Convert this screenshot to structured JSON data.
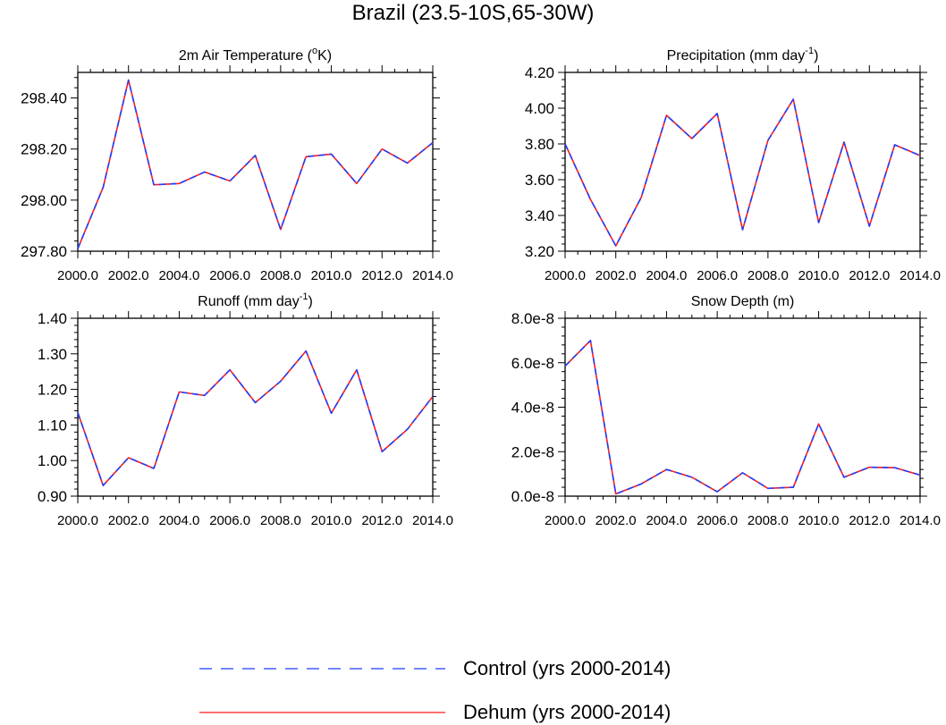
{
  "page_title": "Brazil (23.5-10S,65-30W)",
  "colors": {
    "control": "#1f3fff",
    "dehum": "#ff1a1a",
    "axis": "#000000"
  },
  "legend": {
    "control_label": "Control (yrs 2000-2014)",
    "dehum_label": "Dehum (yrs 2000-2014)"
  },
  "chart_data": [
    {
      "type": "line",
      "title": "2m Air Temperature (",
      "title_sup": "o",
      "title_after": "K)",
      "xlabel": "",
      "ylabel": "",
      "xlim": [
        2000,
        2014
      ],
      "ylim": [
        297.8,
        298.5
      ],
      "x_ticks": [
        2000,
        2002,
        2004,
        2006,
        2008,
        2010,
        2012,
        2014
      ],
      "x_tick_labels": [
        "2000.0",
        "2002.0",
        "2004.0",
        "2006.0",
        "2008.0",
        "2010.0",
        "2012.0",
        "2014.0"
      ],
      "y_ticks": [
        297.8,
        298.0,
        298.2,
        298.4
      ],
      "y_tick_labels": [
        "297.80",
        "298.00",
        "298.20",
        "298.40"
      ],
      "x": [
        2000,
        2001,
        2002,
        2003,
        2004,
        2005,
        2006,
        2007,
        2008,
        2009,
        2010,
        2011,
        2012,
        2013,
        2014
      ],
      "series": [
        {
          "name": "Control (yrs 2000-2014)",
          "style": "dashed",
          "values": [
            297.81,
            298.05,
            298.47,
            298.06,
            298.065,
            298.11,
            298.075,
            298.175,
            297.885,
            298.17,
            298.18,
            298.065,
            298.2,
            298.145,
            298.225
          ]
        },
        {
          "name": "Dehum (yrs 2000-2014)",
          "style": "solid",
          "values": [
            297.81,
            298.05,
            298.47,
            298.06,
            298.065,
            298.11,
            298.075,
            298.175,
            297.885,
            298.17,
            298.18,
            298.065,
            298.2,
            298.145,
            298.225
          ]
        }
      ]
    },
    {
      "type": "line",
      "title": "Precipitation (mm day",
      "title_sup": "-1",
      "title_after": ")",
      "xlabel": "",
      "ylabel": "",
      "xlim": [
        2000,
        2014
      ],
      "ylim": [
        3.2,
        4.2
      ],
      "x_ticks": [
        2000,
        2002,
        2004,
        2006,
        2008,
        2010,
        2012,
        2014
      ],
      "x_tick_labels": [
        "2000.0",
        "2002.0",
        "2004.0",
        "2006.0",
        "2008.0",
        "2010.0",
        "2012.0",
        "2014.0"
      ],
      "y_ticks": [
        3.2,
        3.4,
        3.6,
        3.8,
        4.0,
        4.2
      ],
      "y_tick_labels": [
        "3.20",
        "3.40",
        "3.60",
        "3.80",
        "4.00",
        "4.20"
      ],
      "x": [
        2000,
        2001,
        2002,
        2003,
        2004,
        2005,
        2006,
        2007,
        2008,
        2009,
        2010,
        2011,
        2012,
        2013,
        2014
      ],
      "series": [
        {
          "name": "Control (yrs 2000-2014)",
          "style": "dashed",
          "values": [
            3.8,
            3.49,
            3.23,
            3.5,
            3.96,
            3.83,
            3.97,
            3.32,
            3.82,
            4.05,
            3.36,
            3.81,
            3.34,
            3.795,
            3.735
          ]
        },
        {
          "name": "Dehum (yrs 2000-2014)",
          "style": "solid",
          "values": [
            3.8,
            3.49,
            3.23,
            3.5,
            3.96,
            3.83,
            3.97,
            3.32,
            3.82,
            4.05,
            3.36,
            3.81,
            3.34,
            3.795,
            3.735
          ]
        }
      ]
    },
    {
      "type": "line",
      "title": "Runoff (mm day",
      "title_sup": "-1",
      "title_after": ")",
      "xlabel": "",
      "ylabel": "",
      "xlim": [
        2000,
        2014
      ],
      "ylim": [
        0.9,
        1.4
      ],
      "x_ticks": [
        2000,
        2002,
        2004,
        2006,
        2008,
        2010,
        2012,
        2014
      ],
      "x_tick_labels": [
        "2000.0",
        "2002.0",
        "2004.0",
        "2006.0",
        "2008.0",
        "2010.0",
        "2012.0",
        "2014.0"
      ],
      "y_ticks": [
        0.9,
        1.0,
        1.1,
        1.2,
        1.3,
        1.4
      ],
      "y_tick_labels": [
        "0.90",
        "1.00",
        "1.10",
        "1.20",
        "1.30",
        "1.40"
      ],
      "x": [
        2000,
        2001,
        2002,
        2003,
        2004,
        2005,
        2006,
        2007,
        2008,
        2009,
        2010,
        2011,
        2012,
        2013,
        2014
      ],
      "series": [
        {
          "name": "Control (yrs 2000-2014)",
          "style": "dashed",
          "values": [
            1.135,
            0.93,
            1.008,
            0.978,
            1.193,
            1.183,
            1.255,
            1.163,
            1.223,
            1.308,
            1.133,
            1.255,
            1.025,
            1.088,
            1.18
          ]
        },
        {
          "name": "Dehum (yrs 2000-2014)",
          "style": "solid",
          "values": [
            1.135,
            0.93,
            1.008,
            0.978,
            1.193,
            1.183,
            1.255,
            1.163,
            1.223,
            1.308,
            1.133,
            1.255,
            1.025,
            1.088,
            1.18
          ]
        }
      ]
    },
    {
      "type": "line",
      "title": "Snow Depth (m)",
      "title_sup": "",
      "title_after": "",
      "xlabel": "",
      "ylabel": "",
      "xlim": [
        2000,
        2014
      ],
      "ylim": [
        0,
        8e-08
      ],
      "x_ticks": [
        2000,
        2002,
        2004,
        2006,
        2008,
        2010,
        2012,
        2014
      ],
      "x_tick_labels": [
        "2000.0",
        "2002.0",
        "2004.0",
        "2006.0",
        "2008.0",
        "2010.0",
        "2012.0",
        "2014.0"
      ],
      "y_ticks": [
        0,
        2e-08,
        4e-08,
        6e-08,
        8e-08
      ],
      "y_tick_labels": [
        "0.0e-8",
        "2.0e-8",
        "4.0e-8",
        "6.0e-8",
        "8.0e-8"
      ],
      "x": [
        2000,
        2001,
        2002,
        2003,
        2004,
        2005,
        2006,
        2007,
        2008,
        2009,
        2010,
        2011,
        2012,
        2013,
        2014
      ],
      "series": [
        {
          "name": "Control (yrs 2000-2014)",
          "style": "dashed",
          "values": [
            5.85e-08,
            7e-08,
            1e-09,
            5.5e-09,
            1.2e-08,
            8.5e-09,
            2e-09,
            1.05e-08,
            3.5e-09,
            4e-09,
            3.25e-08,
            8.5e-09,
            1.3e-08,
            1.28e-08,
            9.5e-09
          ]
        },
        {
          "name": "Dehum (yrs 2000-2014)",
          "style": "solid",
          "values": [
            5.85e-08,
            7e-08,
            1e-09,
            5.5e-09,
            1.2e-08,
            8.5e-09,
            2e-09,
            1.05e-08,
            3.5e-09,
            4e-09,
            3.25e-08,
            8.5e-09,
            1.3e-08,
            1.28e-08,
            9.5e-09
          ]
        }
      ]
    }
  ]
}
